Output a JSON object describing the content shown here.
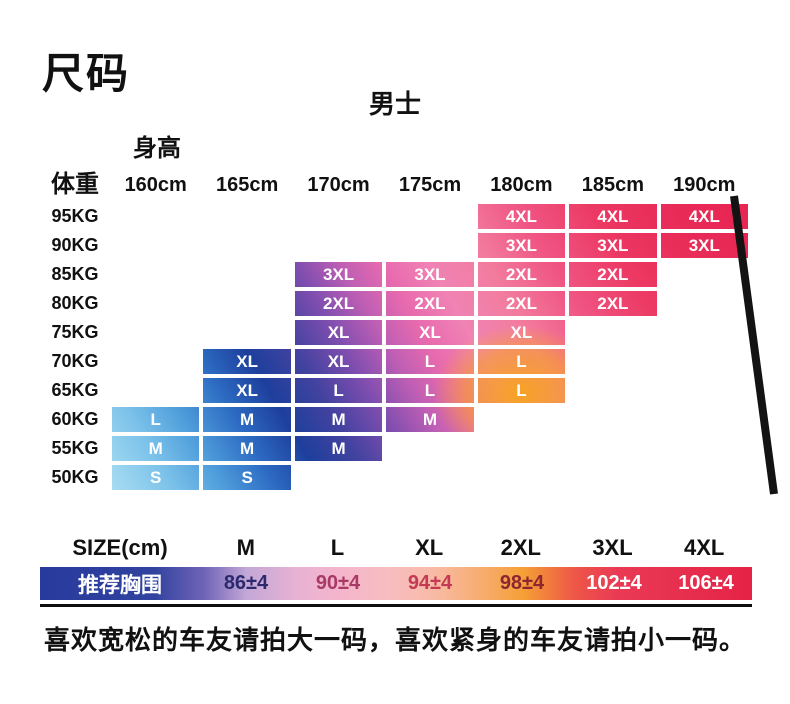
{
  "page": {
    "title": "尺码",
    "gender": "男士",
    "height_label": "身高",
    "weight_label": "体重",
    "footnote": "喜欢宽松的车友请拍大一码，喜欢紧身的车友请拍小一码。"
  },
  "chart_data": [
    {
      "type": "heatmap",
      "xlabel": "身高",
      "ylabel": "体重",
      "columns": [
        "160cm",
        "165cm",
        "170cm",
        "175cm",
        "180cm",
        "185cm",
        "190cm"
      ],
      "rows": [
        "95KG",
        "90KG",
        "85KG",
        "80KG",
        "75KG",
        "70KG",
        "65KG",
        "60KG",
        "55KG",
        "50KG"
      ],
      "cells": [
        [
          null,
          null,
          null,
          null,
          "4XL",
          "4XL",
          "4XL"
        ],
        [
          null,
          null,
          null,
          null,
          "3XL",
          "3XL",
          "3XL"
        ],
        [
          null,
          null,
          "3XL",
          "3XL",
          "2XL",
          "2XL",
          null
        ],
        [
          null,
          null,
          "2XL",
          "2XL",
          "2XL",
          "2XL",
          null
        ],
        [
          null,
          null,
          "XL",
          "XL",
          "XL",
          null,
          null
        ],
        [
          null,
          "XL",
          "XL",
          "L",
          "L",
          null,
          null
        ],
        [
          null,
          "XL",
          "L",
          "L",
          "L",
          null,
          null
        ],
        [
          "L",
          "M",
          "M",
          "M",
          null,
          null,
          null
        ],
        [
          "M",
          "M",
          "M",
          null,
          null,
          null,
          null
        ],
        [
          "S",
          "S",
          null,
          null,
          null,
          null,
          null
        ]
      ]
    },
    {
      "type": "table",
      "header_label": "SIZE(cm)",
      "row_label": "推荐胸围",
      "columns": [
        "M",
        "L",
        "XL",
        "2XL",
        "3XL",
        "4XL"
      ],
      "values": [
        "86±4",
        "90±4",
        "94±4",
        "98±4",
        "102±4",
        "106±4"
      ],
      "value_text_colors": [
        "#2c2a6e",
        "#a93a64",
        "#c43a55",
        "#8d2630",
        "#ffffff",
        "#ffffff"
      ]
    }
  ],
  "colors": {
    "gradient_blue_light": "#aadef2",
    "gradient_navy": "#1e3f9c",
    "gradient_purple": "#7c4daf",
    "gradient_pink": "#ee6aae",
    "gradient_orange": "#f6a21f",
    "gradient_red": "#e5234e",
    "bar_navy": "#283a9c",
    "bar_red": "#e52347",
    "accent_black": "#111111"
  }
}
